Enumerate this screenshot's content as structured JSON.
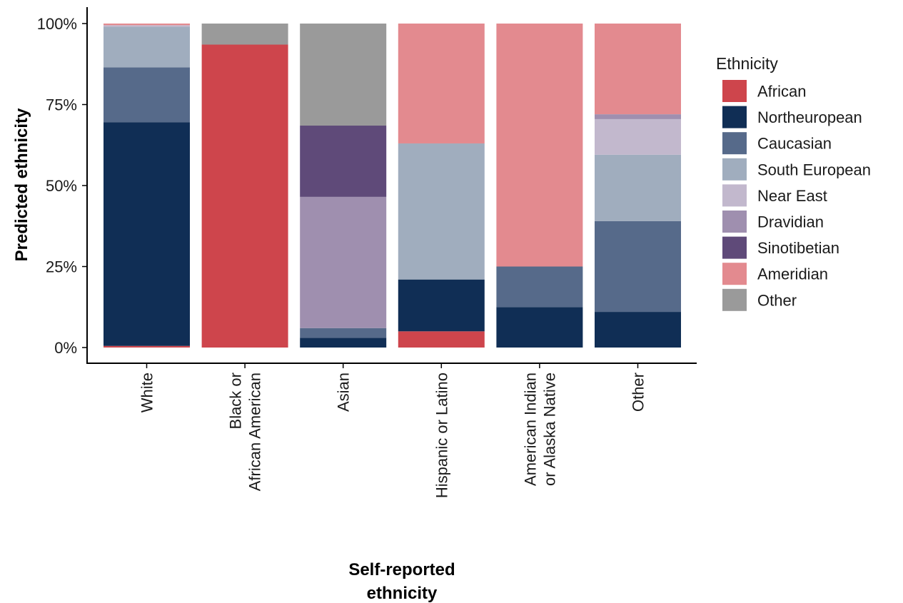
{
  "chart_data": {
    "type": "bar",
    "stacked": true,
    "orientation": "vertical",
    "xlabel": "Self-reported ethnicity",
    "ylabel": "Predicted ethnicity",
    "ylim": [
      0,
      100
    ],
    "y_unit": "%",
    "yticks": [
      "0%",
      "25%",
      "50%",
      "75%",
      "100%"
    ],
    "ytick_values": [
      0,
      25,
      50,
      75,
      100
    ],
    "grid": false,
    "legend_position": "right",
    "legend_title": "Ethnicity",
    "categories": [
      [
        "White"
      ],
      [
        "Black or",
        "African American"
      ],
      [
        "Asian"
      ],
      [
        "Hispanic or Latino"
      ],
      [
        "American Indian",
        "or Alaska Native"
      ],
      [
        "Other"
      ]
    ],
    "series": [
      {
        "name": "African",
        "color": "#CE454C",
        "values": [
          0.5,
          93.5,
          0,
          5,
          0,
          0
        ]
      },
      {
        "name": "Northeuropean",
        "color": "#102E55",
        "values": [
          69,
          0,
          3,
          16,
          12.5,
          11
        ]
      },
      {
        "name": "Caucasian",
        "color": "#566A8A",
        "values": [
          17,
          0,
          3,
          0,
          12.5,
          28
        ]
      },
      {
        "name": "South European",
        "color": "#A0ADBE",
        "values": [
          12.5,
          0,
          0,
          42,
          0,
          20.5
        ]
      },
      {
        "name": "Near East",
        "color": "#C2B8CD",
        "values": [
          0.5,
          0,
          0,
          0,
          0,
          11
        ]
      },
      {
        "name": "Dravidian",
        "color": "#9F8FAF",
        "values": [
          0,
          0,
          40.5,
          0,
          0,
          1.5
        ]
      },
      {
        "name": "Sinotibetian",
        "color": "#5F4A79",
        "values": [
          0,
          0,
          22,
          0,
          0,
          0
        ]
      },
      {
        "name": "Ameridian",
        "color": "#E38A8F",
        "values": [
          0.5,
          0,
          0,
          37,
          75,
          28
        ]
      },
      {
        "name": "Other",
        "color": "#9A9A9A",
        "values": [
          0,
          6.5,
          31.5,
          0,
          0,
          0
        ]
      }
    ]
  }
}
